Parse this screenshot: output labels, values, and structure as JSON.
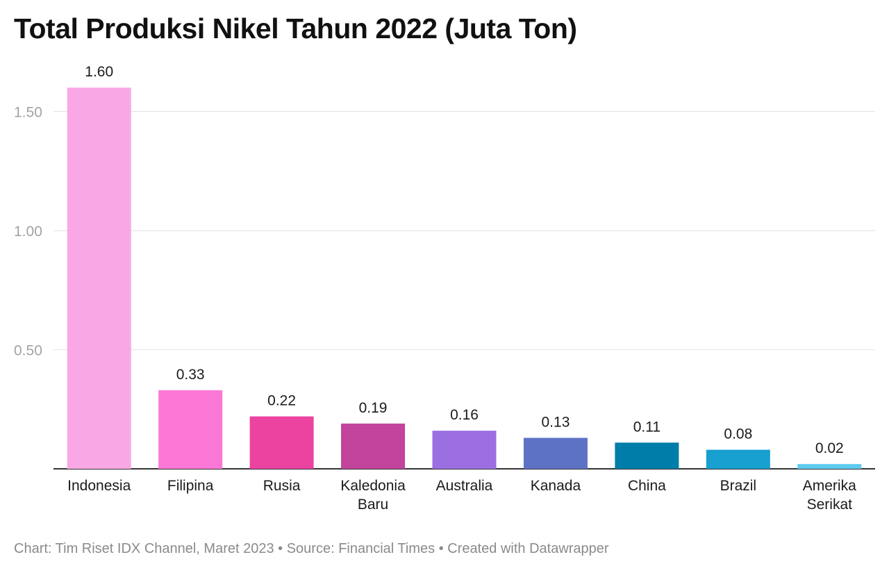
{
  "chart_data": {
    "type": "bar",
    "title": "Total Produksi Nikel Tahun 2022 (Juta Ton)",
    "categories": [
      [
        "Indonesia"
      ],
      [
        "Filipina"
      ],
      [
        "Rusia"
      ],
      [
        "Kaledonia",
        "Baru"
      ],
      [
        "Australia"
      ],
      [
        "Kanada"
      ],
      [
        "China"
      ],
      [
        "Brazil"
      ],
      [
        "Amerika",
        "Serikat"
      ]
    ],
    "values": [
      1.6,
      0.33,
      0.22,
      0.19,
      0.16,
      0.13,
      0.11,
      0.08,
      0.02
    ],
    "value_labels": [
      "1.60",
      "0.33",
      "0.22",
      "0.19",
      "0.16",
      "0.13",
      "0.11",
      "0.08",
      "0.02"
    ],
    "colors": [
      "#f9a8e5",
      "#fb78d6",
      "#ec43a0",
      "#c2449b",
      "#9b6fe2",
      "#5e72c5",
      "#007da8",
      "#17a0d0",
      "#5fcbef"
    ],
    "y_ticks": [
      0.5,
      1.0,
      1.5
    ],
    "y_tick_labels": [
      "0.50",
      "1.00",
      "1.50"
    ],
    "ylim": [
      0,
      1.6
    ],
    "xlabel": "",
    "ylabel": "",
    "grid": true
  },
  "footer": "Chart: Tim Riset IDX Channel, Maret 2023 • Source: Financial Times • Created with Datawrapper"
}
